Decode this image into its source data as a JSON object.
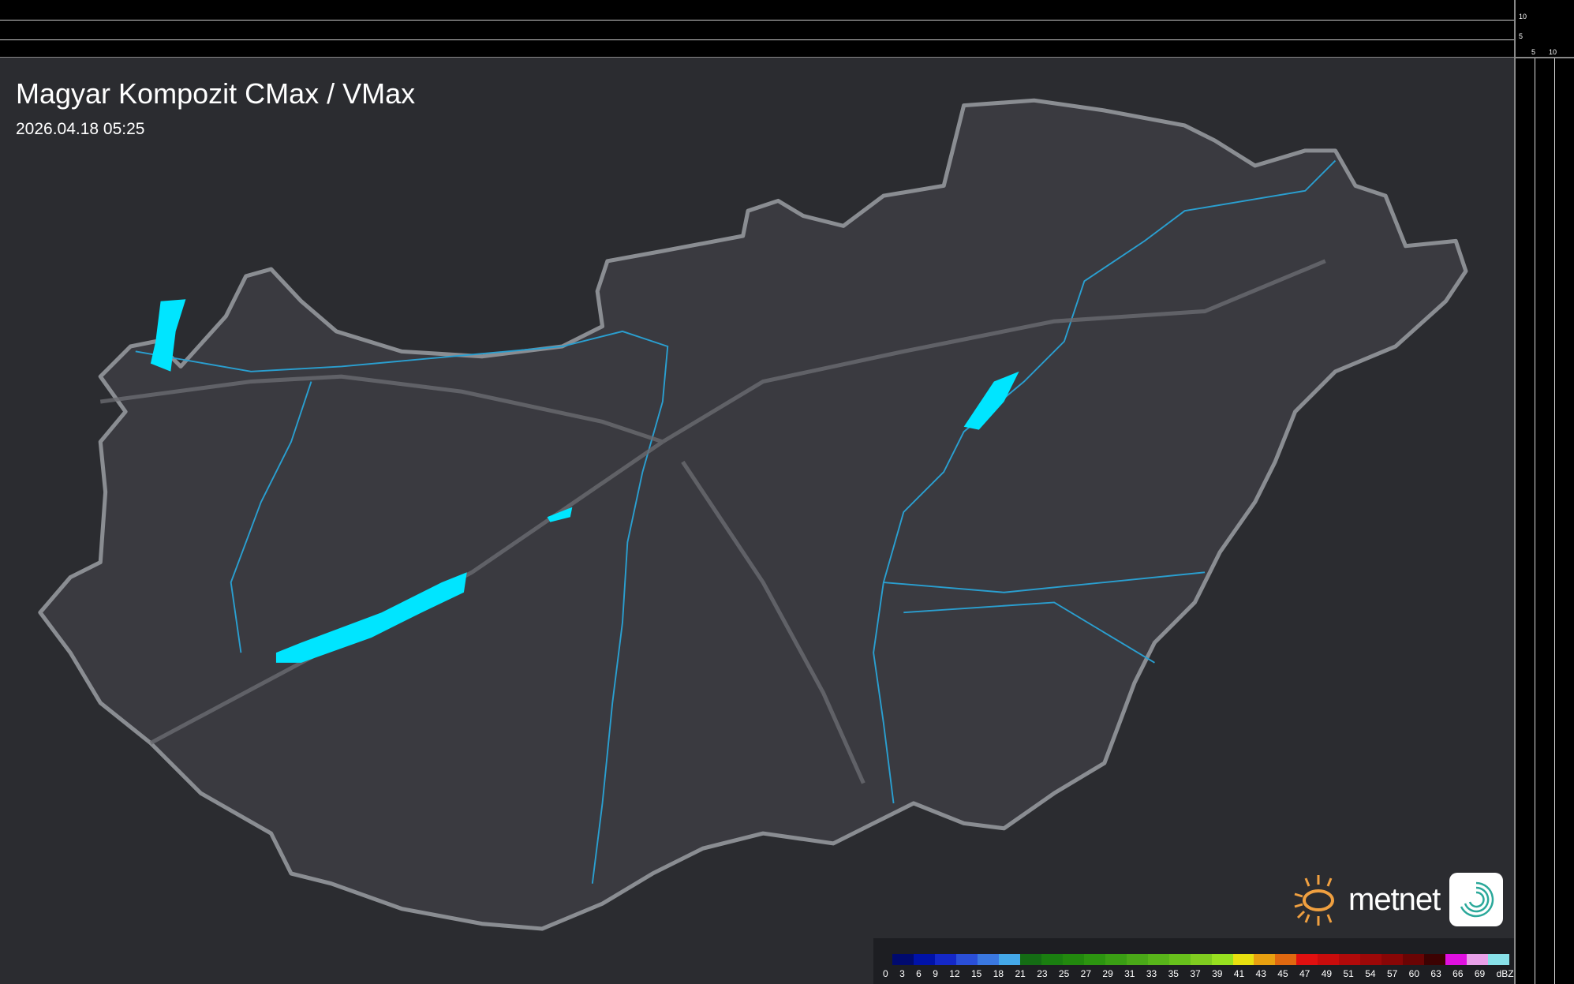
{
  "header": {
    "title": "Magyar Kompozit CMax / VMax",
    "timestamp": "2026.04.18 05:25"
  },
  "scale_marks": {
    "vertical": [
      "10",
      "5"
    ],
    "horizontal": [
      "5",
      "10"
    ]
  },
  "legend": {
    "unit": "dBZ",
    "labels": [
      "0",
      "3",
      "6",
      "9",
      "12",
      "15",
      "18",
      "21",
      "23",
      "25",
      "27",
      "29",
      "31",
      "33",
      "35",
      "37",
      "39",
      "41",
      "43",
      "45",
      "47",
      "49",
      "51",
      "54",
      "57",
      "60",
      "63",
      "66",
      "69"
    ],
    "colors": [
      "#000a6e",
      "#0012a8",
      "#1428c8",
      "#2a4fd8",
      "#3a78e0",
      "#44a8e8",
      "#146c14",
      "#1a7e10",
      "#22880e",
      "#2c9410",
      "#3a9e14",
      "#4aa818",
      "#58b41a",
      "#68c01c",
      "#80cc20",
      "#98e020",
      "#e8e010",
      "#e8a010",
      "#e06810",
      "#e01010",
      "#c80c0c",
      "#b00a0a",
      "#9c0808",
      "#880606",
      "#6a0404",
      "#3c0202",
      "#e010e0",
      "#e8a0e8",
      "#88e0e8"
    ]
  },
  "brand": {
    "name": "metnet",
    "sun_color": "#f0a040",
    "water_color": "#00e5ff",
    "border_color": "#7aa7c0"
  }
}
